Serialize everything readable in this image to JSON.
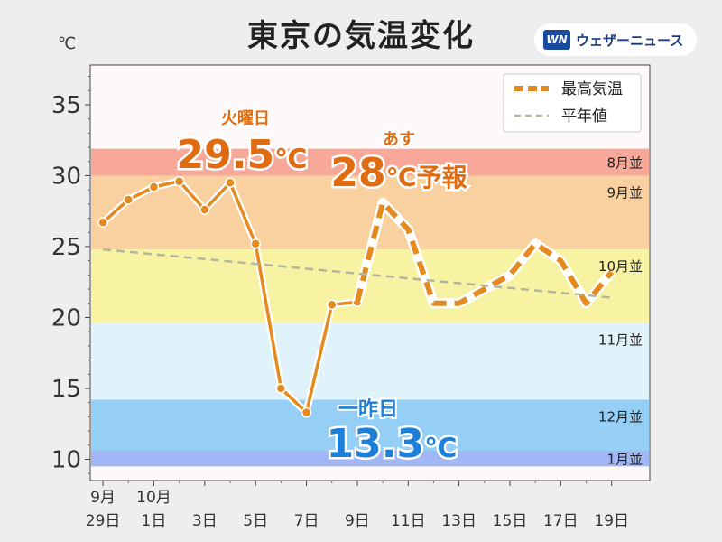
{
  "title": "東京の気温変化",
  "unit": "℃",
  "brand": {
    "logo": "WN",
    "name": "ウェザーニュース"
  },
  "colors": {
    "accent_orange": "#e58a1e",
    "label_orange": "#e06c12",
    "label_blue": "#1d7fd8",
    "normal_line": "#b4b4a0"
  },
  "annotations": {
    "max_label": "火曜日",
    "max_value": "29.5",
    "max_unit": "℃",
    "forecast_label": "あす",
    "forecast_value": "28",
    "forecast_unit": "℃予報",
    "min_label": "一昨日",
    "min_value": "13.3",
    "min_unit": "℃"
  },
  "chart_data": {
    "type": "line",
    "ylim": [
      8.5,
      37.8
    ],
    "xlim": [
      -0.5,
      21.5
    ],
    "yticks": [
      10,
      15,
      20,
      25,
      30,
      35
    ],
    "xticks": [
      {
        "x": 0,
        "top": "9月",
        "bottom": "29日"
      },
      {
        "x": 2,
        "top": "10月",
        "bottom": "1日"
      },
      {
        "x": 4,
        "top": "",
        "bottom": "3日"
      },
      {
        "x": 6,
        "top": "",
        "bottom": "5日"
      },
      {
        "x": 8,
        "top": "",
        "bottom": "7日"
      },
      {
        "x": 10,
        "top": "",
        "bottom": "9日"
      },
      {
        "x": 12,
        "top": "",
        "bottom": "11日"
      },
      {
        "x": 14,
        "top": "",
        "bottom": "13日"
      },
      {
        "x": 16,
        "top": "",
        "bottom": "15日"
      },
      {
        "x": 18,
        "top": "",
        "bottom": "17日"
      },
      {
        "x": 20,
        "top": "",
        "bottom": "19日"
      }
    ],
    "bands": [
      {
        "label": "8月並",
        "from": 30.0,
        "to": 31.9,
        "color": "#f8a898"
      },
      {
        "label": "9月並",
        "from": 24.8,
        "to": 30.0,
        "color": "#f9d0a0"
      },
      {
        "label": "10月並",
        "from": 19.6,
        "to": 24.8,
        "color": "#f7f3a2"
      },
      {
        "label": "11月並",
        "from": 14.2,
        "to": 19.6,
        "color": "#e0f2fa"
      },
      {
        "label": "12月並",
        "from": 10.6,
        "to": 14.2,
        "color": "#96cff5"
      },
      {
        "label": "1月並",
        "from": 9.5,
        "to": 10.6,
        "color": "#a0b6f5"
      }
    ],
    "legend": {
      "position": "top-right",
      "entries": [
        {
          "name": "最高気温",
          "style": "dashed-thick"
        },
        {
          "name": "平年値",
          "style": "dashed-thin"
        }
      ]
    },
    "series": [
      {
        "name": "最高気温",
        "style": "observed",
        "x": [
          0,
          1,
          2,
          3,
          4,
          5,
          6,
          7,
          8,
          9,
          10
        ],
        "values": [
          26.7,
          28.3,
          29.2,
          29.6,
          27.6,
          29.5,
          25.2,
          15.0,
          13.3,
          20.9,
          21.1
        ]
      },
      {
        "name": "最高気温",
        "style": "forecast",
        "x": [
          10,
          11,
          12,
          13,
          14,
          15,
          16,
          17,
          18,
          19,
          20
        ],
        "values": [
          21.1,
          28.1,
          26.2,
          21.0,
          21.0,
          22.0,
          23.0,
          25.2,
          24.0,
          21.0,
          23.2
        ]
      },
      {
        "name": "平年値",
        "style": "normal",
        "x": [
          0,
          20
        ],
        "values": [
          24.8,
          21.4
        ]
      }
    ]
  }
}
